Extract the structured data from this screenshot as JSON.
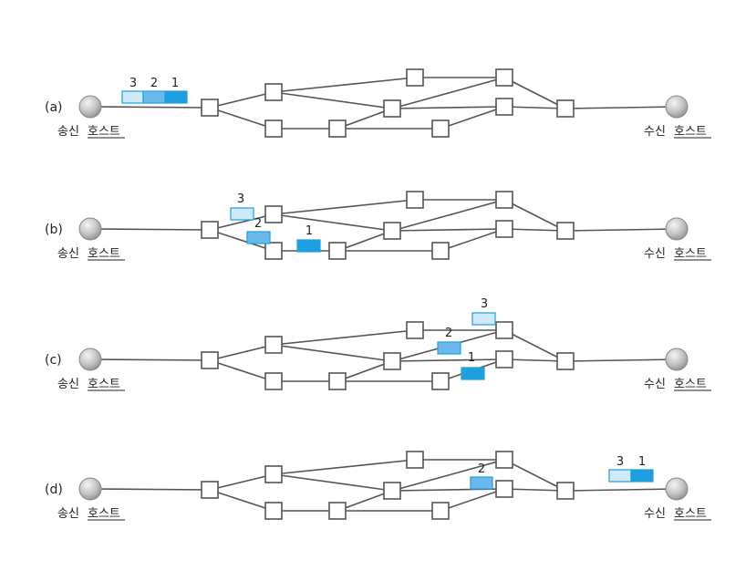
{
  "panels": [
    {
      "id": "a",
      "label": "(a)",
      "sender_label": "송신",
      "sender_host": "호스트",
      "receiver_label": "수신",
      "receiver_host": "호스트",
      "packets": [
        {
          "number": "3"
        },
        {
          "number": "2"
        },
        {
          "number": "1"
        }
      ]
    },
    {
      "id": "b",
      "label": "(b)",
      "sender_label": "송신",
      "sender_host": "호스트",
      "receiver_label": "수신",
      "receiver_host": "호스트",
      "packets": [
        {
          "number": "3"
        },
        {
          "number": "2"
        },
        {
          "number": "1"
        }
      ]
    },
    {
      "id": "c",
      "label": "(c)",
      "sender_label": "송신",
      "sender_host": "호스트",
      "receiver_label": "수신",
      "receiver_host": "호스트",
      "packets": [
        {
          "number": "3"
        },
        {
          "number": "2"
        },
        {
          "number": "1"
        }
      ]
    },
    {
      "id": "d",
      "label": "(d)",
      "sender_label": "송신",
      "sender_host": "호스트",
      "receiver_label": "수신",
      "receiver_host": "호스트",
      "packets": [
        {
          "number": "3"
        },
        {
          "number": "1"
        },
        {
          "number": "2"
        }
      ]
    }
  ],
  "colors": {
    "packet_1": "#1e9fe0",
    "packet_2": "#6ab9ea",
    "packet_3": "#cfeafb",
    "packet_stroke": "#1e9fe0",
    "link": "#555555",
    "host": "#b5b5b5"
  }
}
